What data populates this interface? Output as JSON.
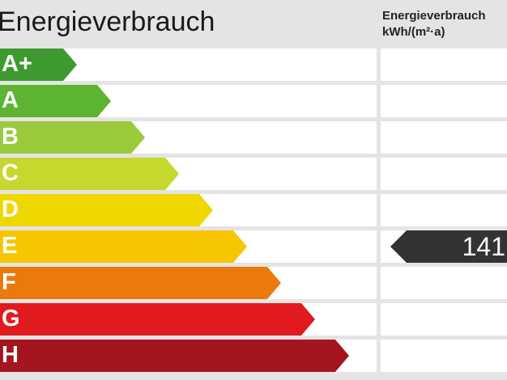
{
  "title": "Energieverbrauch",
  "unit_header": {
    "line1": "Energieverbrauch",
    "line2": "kWh/(m²·a)"
  },
  "classes": [
    {
      "label": "A+",
      "color": "#3d9a2f"
    },
    {
      "label": "A",
      "color": "#5cb431"
    },
    {
      "label": "B",
      "color": "#9bcb3c"
    },
    {
      "label": "C",
      "color": "#c6d82e"
    },
    {
      "label": "D",
      "color": "#efd700"
    },
    {
      "label": "E",
      "color": "#f8c600"
    },
    {
      "label": "F",
      "color": "#ea7a0b"
    },
    {
      "label": "G",
      "color": "#e11a20"
    },
    {
      "label": "H",
      "color": "#a5151f"
    }
  ],
  "marker": {
    "value": "141",
    "class": "E",
    "color": "#333333"
  }
}
